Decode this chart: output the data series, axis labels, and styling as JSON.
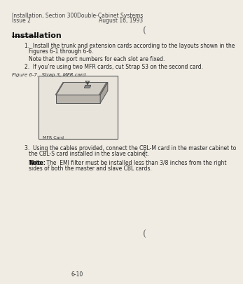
{
  "bg_color": "#f0ece4",
  "header_left_line1": "Installation, Section 300",
  "header_left_line2": "Issue 2",
  "header_right_line1": "Double-Cabinet Systems",
  "header_right_line2": "August 16, 1993",
  "section_title": "Installation",
  "item1_line1": "1.  Install the trunk and extension cards according to the layouts shown in the",
  "item1_line2": "    Figures 6-1 through 6-6.",
  "item1_note": "Note that the port numbers for each slot are fixed.",
  "item2_text": "2.  If you’re using two MFR cards, cut Strap S3 on the second card.",
  "figure_caption": "Figure 6-7.  Strap 3, MFR card",
  "figure_label": "MFR Card",
  "item3_line1": "3.  Using the cables provided, connect the CBL-M card in the master cabinet to",
  "item3_line2": "    the CBL-S card installed in the slave cabinet.",
  "note_line1": "Note:  The  EMI filter must be installed less than 3/8 inches from the right",
  "note_line2": "sides of both the master and slave CBL cards.",
  "note_bold": "Note:",
  "page_number": "6-10",
  "paren_char": "("
}
